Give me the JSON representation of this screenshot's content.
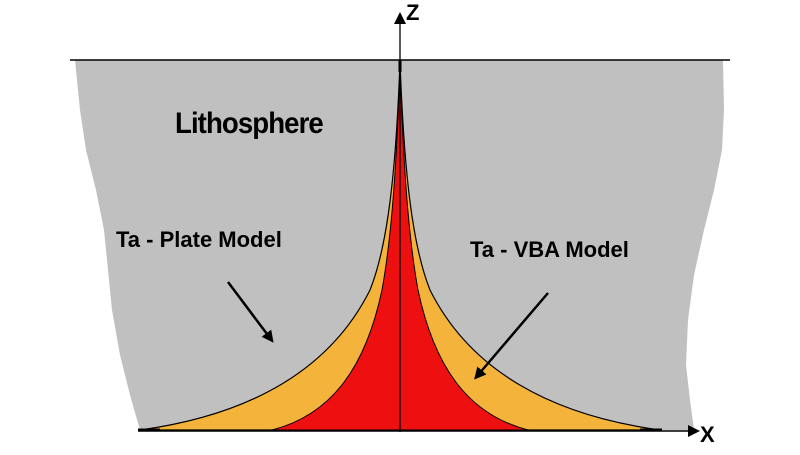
{
  "figure": {
    "region_label": "Lithosphere",
    "left_label": "Ta - Plate Model",
    "right_label": "Ta - VBA Model",
    "axes": {
      "vertical": "Z",
      "horizontal": "X"
    }
  },
  "colors": {
    "background": "#ffffff",
    "lithosphere": "#c0c0c0",
    "plate_model_fill": "#f4b43c",
    "vba_model_fill": "#ee1010",
    "lines": "#000000"
  }
}
